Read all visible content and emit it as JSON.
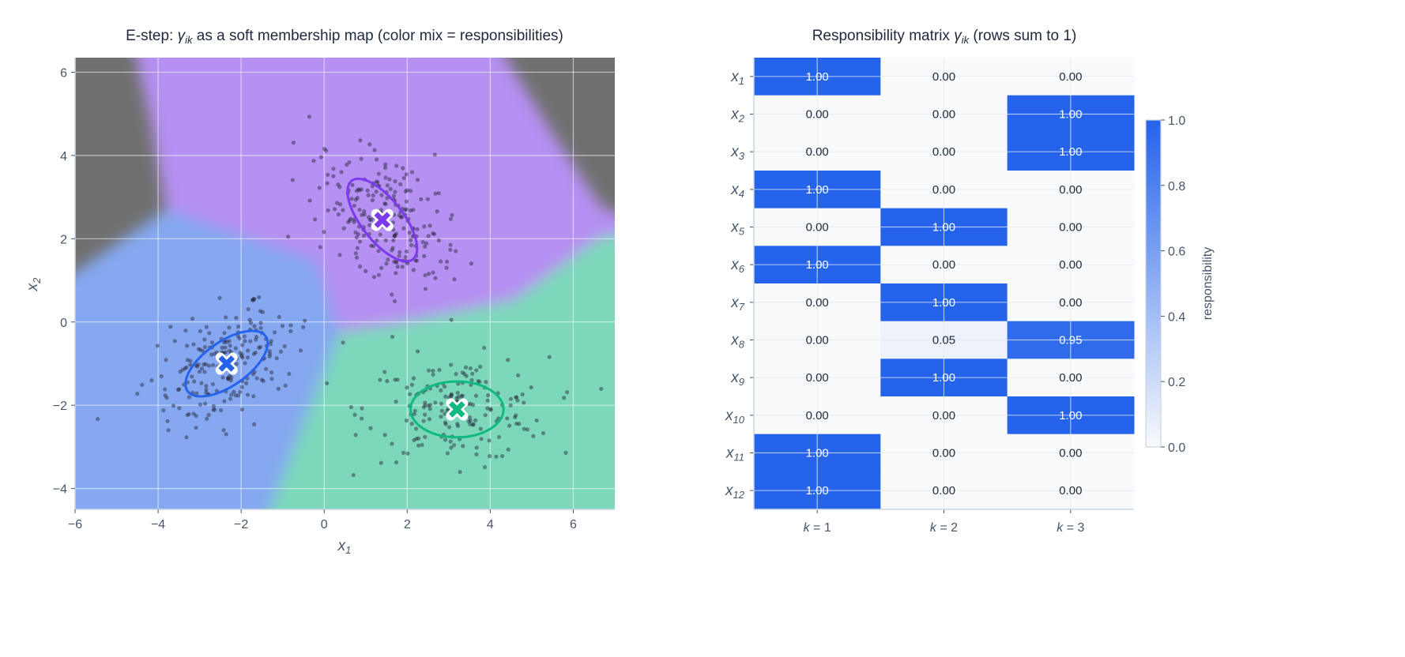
{
  "chart_data": [
    {
      "type": "scatter",
      "title_prefix": "E-step: ",
      "title_symbol": "γ",
      "title_sub": "ik",
      "title_suffix": " as a soft membership map (color mix  =  responsibilities)",
      "xlabel": "x",
      "xlabel_sub": "1",
      "ylabel": "x",
      "ylabel_sub": "2",
      "xlim": [
        -6.0,
        7.0
      ],
      "ylim": [
        -4.5,
        6.35
      ],
      "xticks": [
        -6,
        -4,
        -2,
        0,
        2,
        4,
        6
      ],
      "yticks": [
        -4,
        -2,
        0,
        2,
        4,
        6
      ],
      "xtick_labels": [
        "−6",
        "−4",
        "−2",
        "0",
        "2",
        "4",
        "6"
      ],
      "ytick_labels": [
        "−4",
        "−2",
        "0",
        "2",
        "4",
        "6"
      ],
      "grid": true,
      "background_colors": {
        "none": "#707070",
        "k1": "#85a8f0",
        "k2": "#b690f2",
        "k3": "#7dd8bb"
      },
      "components": [
        {
          "name": "k=1",
          "mean": [
            -2.35,
            -1.0
          ],
          "ellipse_semi_axes": [
            1.15,
            0.53
          ],
          "ellipse_angle_deg": 35,
          "color": "#2563eb",
          "n_points": 210,
          "spread": [
            0.95,
            0.6
          ]
        },
        {
          "name": "k=2",
          "mean": [
            1.4,
            2.45
          ],
          "ellipse_semi_axes": [
            1.2,
            0.5
          ],
          "ellipse_angle_deg": -52,
          "color": "#7c3aed",
          "n_points": 230,
          "spread": [
            1.05,
            0.6
          ]
        },
        {
          "name": "k=3",
          "mean": [
            3.2,
            -2.1
          ],
          "ellipse_semi_axes": [
            1.12,
            0.67
          ],
          "ellipse_angle_deg": 0,
          "color": "#10b981",
          "n_points": 180,
          "spread": [
            1.1,
            0.62
          ]
        }
      ]
    },
    {
      "type": "heatmap",
      "title_prefix": "Responsibility matrix ",
      "title_symbol": "γ",
      "title_sub": "ik",
      "title_suffix": "  (rows sum to 1)",
      "columns": [
        {
          "var": "k",
          "label": " = 1"
        },
        {
          "var": "k",
          "label": " = 2"
        },
        {
          "var": "k",
          "label": " = 3"
        }
      ],
      "rows": [
        {
          "var": "x",
          "sub": "1",
          "values": [
            "1.00",
            "0.00",
            "0.00"
          ]
        },
        {
          "var": "x",
          "sub": "2",
          "values": [
            "0.00",
            "0.00",
            "1.00"
          ]
        },
        {
          "var": "x",
          "sub": "3",
          "values": [
            "0.00",
            "0.00",
            "1.00"
          ]
        },
        {
          "var": "x",
          "sub": "4",
          "values": [
            "1.00",
            "0.00",
            "0.00"
          ]
        },
        {
          "var": "x",
          "sub": "5",
          "values": [
            "0.00",
            "1.00",
            "0.00"
          ]
        },
        {
          "var": "x",
          "sub": "6",
          "values": [
            "1.00",
            "0.00",
            "0.00"
          ]
        },
        {
          "var": "x",
          "sub": "7",
          "values": [
            "0.00",
            "1.00",
            "0.00"
          ]
        },
        {
          "var": "x",
          "sub": "8",
          "values": [
            "0.00",
            "0.05",
            "0.95"
          ]
        },
        {
          "var": "x",
          "sub": "9",
          "values": [
            "0.00",
            "1.00",
            "0.00"
          ]
        },
        {
          "var": "x",
          "sub": "10",
          "values": [
            "0.00",
            "0.00",
            "1.00"
          ]
        },
        {
          "var": "x",
          "sub": "11",
          "values": [
            "1.00",
            "0.00",
            "0.00"
          ]
        },
        {
          "var": "x",
          "sub": "12",
          "values": [
            "1.00",
            "0.00",
            "0.00"
          ]
        }
      ],
      "colorscale": {
        "low": "#f8fafc",
        "high": "#2563eb"
      },
      "colorbar": {
        "label": "responsibility",
        "range": [
          0,
          1
        ],
        "ticks": [
          "0.0",
          "0.2",
          "0.4",
          "0.6",
          "0.8",
          "1.0"
        ]
      }
    }
  ]
}
